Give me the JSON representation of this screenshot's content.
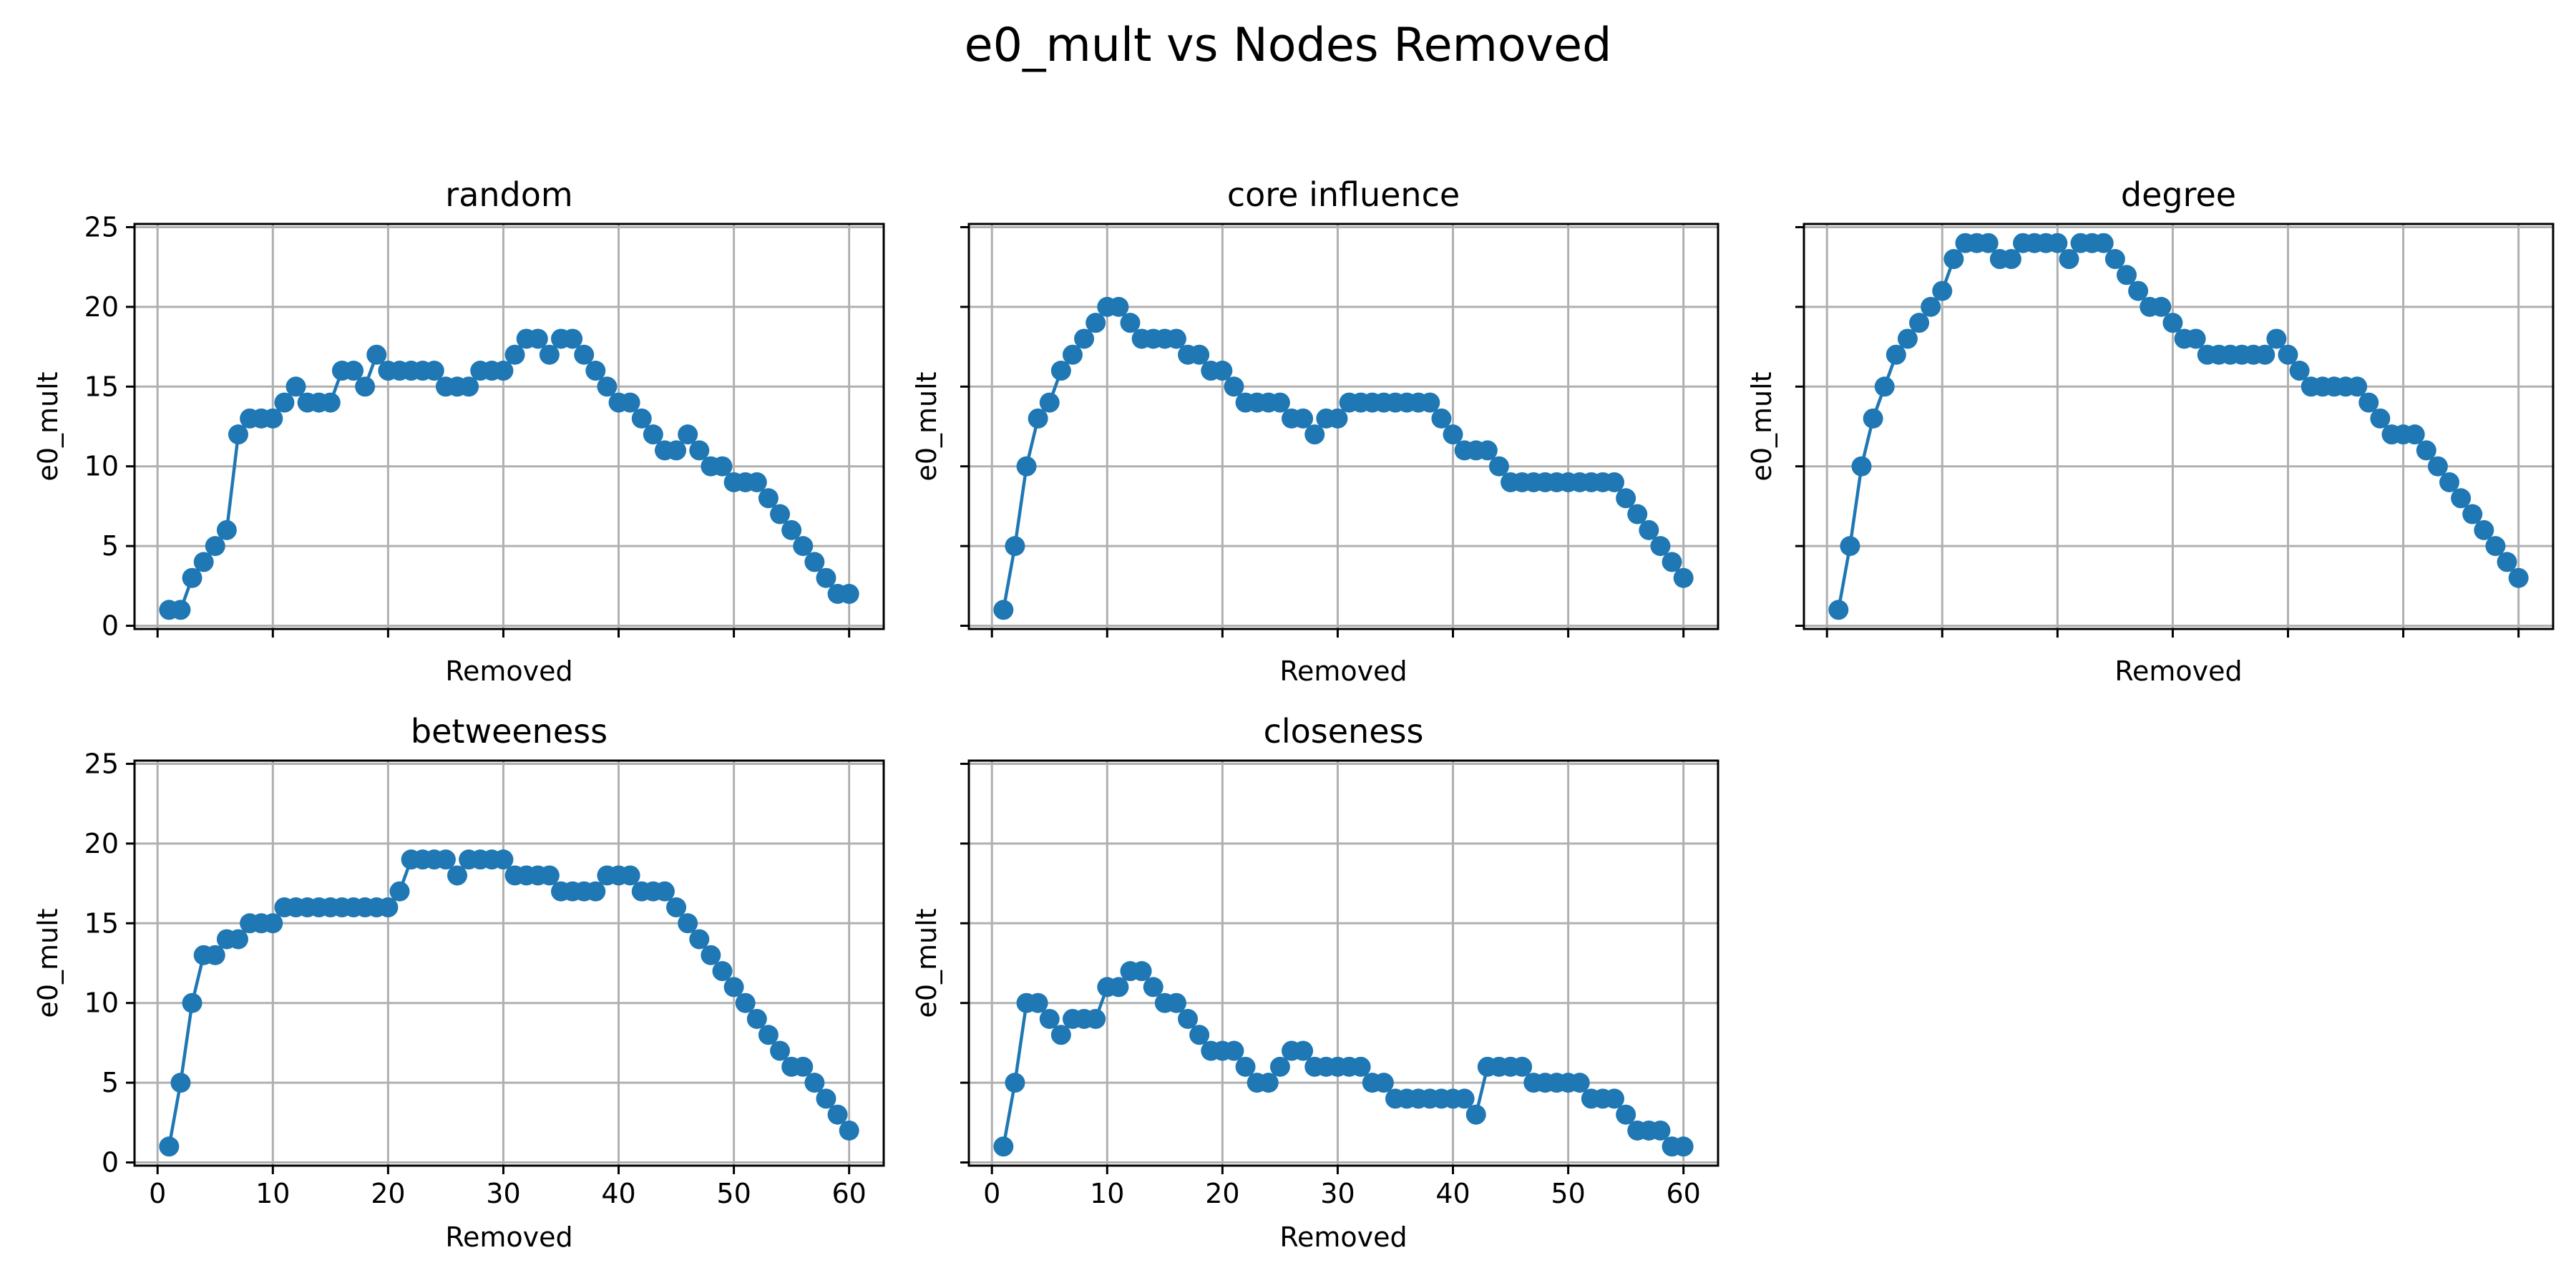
{
  "figure": {
    "title": "e0_mult vs Nodes Removed"
  },
  "style": {
    "line_color": "#1f77b4",
    "grid": true
  },
  "chart_data": [
    {
      "type": "line",
      "title": "random",
      "xlabel": "Removed",
      "ylabel": "e0_mult",
      "xlim": [
        -2,
        63
      ],
      "ylim": [
        -0.2,
        25.2
      ],
      "xticks": [
        0,
        10,
        20,
        30,
        40,
        50,
        60
      ],
      "yticks": [
        0,
        5,
        10,
        15,
        20,
        25
      ],
      "show_xtick_labels": false,
      "show_ytick_labels": true,
      "x": [
        1,
        2,
        3,
        4,
        5,
        6,
        7,
        8,
        9,
        10,
        11,
        12,
        13,
        14,
        15,
        16,
        17,
        18,
        19,
        20,
        21,
        22,
        23,
        24,
        25,
        26,
        27,
        28,
        29,
        30,
        31,
        32,
        33,
        34,
        35,
        36,
        37,
        38,
        39,
        40,
        41,
        42,
        43,
        44,
        45,
        46,
        47,
        48,
        49,
        50,
        51,
        52,
        53,
        54,
        55,
        56,
        57,
        58,
        59,
        60
      ],
      "series": [
        {
          "values": [
            1,
            1,
            3,
            4,
            5,
            6,
            12,
            13,
            13,
            13,
            14,
            15,
            14,
            14,
            14,
            16,
            16,
            15,
            17,
            16,
            16,
            16,
            16,
            16,
            15,
            15,
            15,
            16,
            16,
            16,
            17,
            18,
            18,
            17,
            18,
            18,
            17,
            16,
            15,
            14,
            14,
            13,
            12,
            11,
            11,
            12,
            11,
            10,
            10,
            9,
            9,
            9,
            8,
            7,
            6,
            5,
            4,
            3,
            2,
            2
          ]
        }
      ]
    },
    {
      "type": "line",
      "title": "core influence",
      "xlabel": "Removed",
      "ylabel": "e0_mult",
      "xlim": [
        -2,
        63
      ],
      "ylim": [
        -0.2,
        25.2
      ],
      "xticks": [
        0,
        10,
        20,
        30,
        40,
        50,
        60
      ],
      "yticks": [
        0,
        5,
        10,
        15,
        20,
        25
      ],
      "show_xtick_labels": false,
      "show_ytick_labels": false,
      "x": [
        1,
        2,
        3,
        4,
        5,
        6,
        7,
        8,
        9,
        10,
        11,
        12,
        13,
        14,
        15,
        16,
        17,
        18,
        19,
        20,
        21,
        22,
        23,
        24,
        25,
        26,
        27,
        28,
        29,
        30,
        31,
        32,
        33,
        34,
        35,
        36,
        37,
        38,
        39,
        40,
        41,
        42,
        43,
        44,
        45,
        46,
        47,
        48,
        49,
        50,
        51,
        52,
        53,
        54,
        55,
        56,
        57,
        58,
        59,
        60
      ],
      "series": [
        {
          "values": [
            1,
            5,
            10,
            13,
            14,
            16,
            17,
            18,
            19,
            20,
            20,
            19,
            18,
            18,
            18,
            18,
            17,
            17,
            16,
            16,
            15,
            14,
            14,
            14,
            14,
            13,
            13,
            12,
            13,
            13,
            14,
            14,
            14,
            14,
            14,
            14,
            14,
            14,
            13,
            12,
            11,
            11,
            11,
            10,
            9,
            9,
            9,
            9,
            9,
            9,
            9,
            9,
            9,
            9,
            8,
            7,
            6,
            5,
            4,
            3
          ]
        }
      ]
    },
    {
      "type": "line",
      "title": "degree",
      "xlabel": "Removed",
      "ylabel": "e0_mult",
      "xlim": [
        -2,
        63
      ],
      "ylim": [
        -0.2,
        25.2
      ],
      "xticks": [
        0,
        10,
        20,
        30,
        40,
        50,
        60
      ],
      "yticks": [
        0,
        5,
        10,
        15,
        20,
        25
      ],
      "show_xtick_labels": false,
      "show_ytick_labels": false,
      "x": [
        1,
        2,
        3,
        4,
        5,
        6,
        7,
        8,
        9,
        10,
        11,
        12,
        13,
        14,
        15,
        16,
        17,
        18,
        19,
        20,
        21,
        22,
        23,
        24,
        25,
        26,
        27,
        28,
        29,
        30,
        31,
        32,
        33,
        34,
        35,
        36,
        37,
        38,
        39,
        40,
        41,
        42,
        43,
        44,
        45,
        46,
        47,
        48,
        49,
        50,
        51,
        52,
        53,
        54,
        55,
        56,
        57,
        58,
        59,
        60
      ],
      "series": [
        {
          "values": [
            1,
            5,
            10,
            13,
            15,
            17,
            18,
            19,
            20,
            21,
            23,
            24,
            24,
            24,
            23,
            23,
            24,
            24,
            24,
            24,
            23,
            24,
            24,
            24,
            23,
            22,
            21,
            20,
            20,
            19,
            18,
            18,
            17,
            17,
            17,
            17,
            17,
            17,
            18,
            17,
            16,
            15,
            15,
            15,
            15,
            15,
            14,
            13,
            12,
            12,
            12,
            11,
            10,
            9,
            8,
            7,
            6,
            5,
            4,
            3
          ]
        }
      ]
    },
    {
      "type": "line",
      "title": "betweeness",
      "xlabel": "Removed",
      "ylabel": "e0_mult",
      "xlim": [
        -2,
        63
      ],
      "ylim": [
        -0.2,
        25.2
      ],
      "xticks": [
        0,
        10,
        20,
        30,
        40,
        50,
        60
      ],
      "yticks": [
        0,
        5,
        10,
        15,
        20,
        25
      ],
      "show_xtick_labels": true,
      "show_ytick_labels": true,
      "x": [
        1,
        2,
        3,
        4,
        5,
        6,
        7,
        8,
        9,
        10,
        11,
        12,
        13,
        14,
        15,
        16,
        17,
        18,
        19,
        20,
        21,
        22,
        23,
        24,
        25,
        26,
        27,
        28,
        29,
        30,
        31,
        32,
        33,
        34,
        35,
        36,
        37,
        38,
        39,
        40,
        41,
        42,
        43,
        44,
        45,
        46,
        47,
        48,
        49,
        50,
        51,
        52,
        53,
        54,
        55,
        56,
        57,
        58,
        59,
        60
      ],
      "series": [
        {
          "values": [
            1,
            5,
            10,
            13,
            13,
            14,
            14,
            15,
            15,
            15,
            16,
            16,
            16,
            16,
            16,
            16,
            16,
            16,
            16,
            16,
            17,
            19,
            19,
            19,
            19,
            18,
            19,
            19,
            19,
            19,
            18,
            18,
            18,
            18,
            17,
            17,
            17,
            17,
            18,
            18,
            18,
            17,
            17,
            17,
            16,
            15,
            14,
            13,
            12,
            11,
            10,
            9,
            8,
            7,
            6,
            6,
            5,
            4,
            3,
            2
          ]
        }
      ]
    },
    {
      "type": "line",
      "title": "closeness",
      "xlabel": "Removed",
      "ylabel": "e0_mult",
      "xlim": [
        -2,
        63
      ],
      "ylim": [
        -0.2,
        25.2
      ],
      "xticks": [
        0,
        10,
        20,
        30,
        40,
        50,
        60
      ],
      "yticks": [
        0,
        5,
        10,
        15,
        20,
        25
      ],
      "show_xtick_labels": true,
      "show_ytick_labels": false,
      "x": [
        1,
        2,
        3,
        4,
        5,
        6,
        7,
        8,
        9,
        10,
        11,
        12,
        13,
        14,
        15,
        16,
        17,
        18,
        19,
        20,
        21,
        22,
        23,
        24,
        25,
        26,
        27,
        28,
        29,
        30,
        31,
        32,
        33,
        34,
        35,
        36,
        37,
        38,
        39,
        40,
        41,
        42,
        43,
        44,
        45,
        46,
        47,
        48,
        49,
        50,
        51,
        52,
        53,
        54,
        55,
        56,
        57,
        58,
        59,
        60
      ],
      "series": [
        {
          "values": [
            1,
            5,
            10,
            10,
            9,
            8,
            9,
            9,
            9,
            11,
            11,
            12,
            12,
            11,
            10,
            10,
            9,
            8,
            7,
            7,
            7,
            6,
            5,
            5,
            6,
            7,
            7,
            6,
            6,
            6,
            6,
            6,
            5,
            5,
            4,
            4,
            4,
            4,
            4,
            4,
            4,
            3,
            6,
            6,
            6,
            6,
            5,
            5,
            5,
            5,
            5,
            4,
            4,
            4,
            3,
            2,
            2,
            2,
            1,
            1
          ]
        }
      ]
    }
  ]
}
